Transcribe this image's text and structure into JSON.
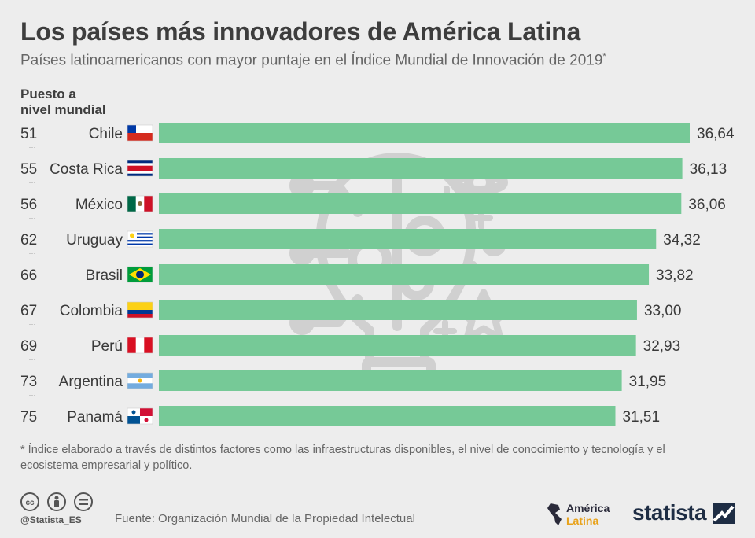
{
  "header": {
    "title": "Los países más innovadores de América Latina",
    "subtitle": "Países latinoamericanos con mayor puntaje en el Índice Mundial de Innovación de 2019",
    "subtitle_mark": "*"
  },
  "rank_header": [
    "Puesto a",
    "nivel mundial"
  ],
  "chart_data": {
    "type": "bar",
    "orientation": "horizontal",
    "title": "Los países más innovadores de América Latina",
    "categories": [
      "Chile",
      "Costa Rica",
      "México",
      "Uruguay",
      "Brasil",
      "Colombia",
      "Perú",
      "Argentina",
      "Panamá"
    ],
    "ranks": [
      "51",
      "55",
      "56",
      "62",
      "66",
      "67",
      "69",
      "73",
      "75"
    ],
    "values": [
      36.64,
      36.13,
      36.06,
      34.32,
      33.82,
      33.0,
      32.93,
      31.95,
      31.51
    ],
    "value_labels": [
      "36,64",
      "36,13",
      "36,06",
      "34,32",
      "33,82",
      "33,00",
      "32,93",
      "31,95",
      "31,51"
    ],
    "xlim": [
      0,
      36.64
    ],
    "bar_color": "#76c997",
    "grid": false,
    "legend": "none"
  },
  "footnote": "* Índice elaborado a través de distintos factores como las infraestructuras disponibles, el nivel de conocimiento y tecnología y el ecosistema empresarial y político.",
  "footer": {
    "handle": "@Statista_ES",
    "source": "Fuente: Organización Mundial de la Propiedad Intelectual",
    "partner_line1": "América",
    "partner_line2": "Latina",
    "brand": "statista"
  },
  "icons": [
    "cc-icon",
    "person-icon",
    "equals-icon",
    "americas-map-icon",
    "statista-logo-icon",
    "innovation-brain-icon"
  ]
}
